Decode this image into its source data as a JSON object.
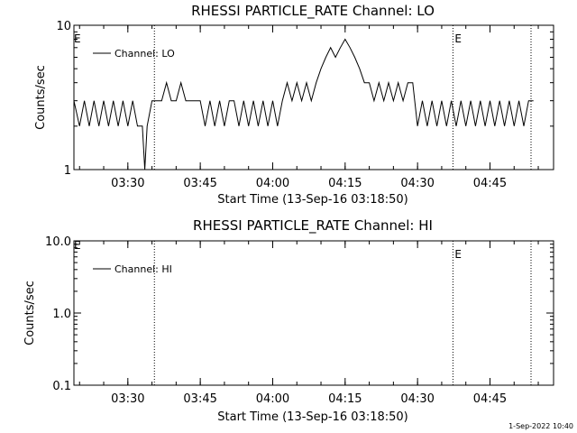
{
  "timestamp": "1-Sep-2022 10:40",
  "x_tick_labels": [
    "03:30",
    "03:45",
    "04:00",
    "04:15",
    "04:30",
    "04:45"
  ],
  "chart_data": [
    {
      "type": "line",
      "title": "RHESSI PARTICLE_RATE Channel: LO",
      "xlabel": "Start Time (13-Sep-16 03:18:50)",
      "ylabel": "Counts/sec",
      "log_y": true,
      "ylim": [
        1,
        10
      ],
      "xlim": [
        "03:18:50",
        "04:58:10"
      ],
      "y_tick_labels": [
        "1",
        "10"
      ],
      "markers": [
        {
          "time": "03:35:30",
          "label": ""
        },
        {
          "time": "04:37:20",
          "label": "E"
        },
        {
          "time": "04:53:30",
          "label": ""
        }
      ],
      "left_marker_label": "E",
      "legend_position": "top-left",
      "series": [
        {
          "name": "Channel: LO",
          "color": "#000000",
          "x": [
            "03:18:50",
            "03:20:00",
            "03:21:00",
            "03:22:00",
            "03:23:00",
            "03:24:00",
            "03:25:00",
            "03:26:00",
            "03:27:00",
            "03:28:00",
            "03:29:00",
            "03:30:00",
            "03:31:00",
            "03:32:00",
            "03:33:00",
            "03:33:30",
            "03:34:00",
            "03:35:00",
            "03:36:00",
            "03:37:00",
            "03:38:00",
            "03:39:00",
            "03:40:00",
            "03:41:00",
            "03:42:00",
            "03:43:00",
            "03:44:00",
            "03:45:00",
            "03:46:00",
            "03:47:00",
            "03:48:00",
            "03:49:00",
            "03:50:00",
            "03:51:00",
            "03:52:00",
            "03:53:00",
            "03:54:00",
            "03:55:00",
            "03:56:00",
            "03:57:00",
            "03:58:00",
            "03:59:00",
            "04:00:00",
            "04:01:00",
            "04:02:00",
            "04:03:00",
            "04:04:00",
            "04:05:00",
            "04:06:00",
            "04:07:00",
            "04:08:00",
            "04:09:00",
            "04:10:00",
            "04:11:00",
            "04:12:00",
            "04:13:00",
            "04:14:00",
            "04:15:00",
            "04:16:00",
            "04:17:00",
            "04:18:00",
            "04:19:00",
            "04:20:00",
            "04:21:00",
            "04:22:00",
            "04:23:00",
            "04:24:00",
            "04:25:00",
            "04:26:00",
            "04:27:00",
            "04:28:00",
            "04:29:00",
            "04:30:00",
            "04:31:00",
            "04:32:00",
            "04:33:00",
            "04:34:00",
            "04:35:00",
            "04:36:00",
            "04:37:00",
            "04:38:00",
            "04:39:00",
            "04:40:00",
            "04:41:00",
            "04:42:00",
            "04:43:00",
            "04:44:00",
            "04:45:00",
            "04:46:00",
            "04:47:00",
            "04:48:00",
            "04:49:00",
            "04:50:00",
            "04:51:00",
            "04:52:00",
            "04:53:00",
            "04:54:00"
          ],
          "y": [
            3,
            2,
            3,
            2,
            3,
            2,
            3,
            2,
            3,
            2,
            3,
            2,
            3,
            2,
            2,
            1,
            2,
            3,
            3,
            3,
            4,
            3,
            3,
            4,
            3,
            3,
            3,
            3,
            2,
            3,
            2,
            3,
            2,
            3,
            3,
            2,
            3,
            2,
            3,
            2,
            3,
            2,
            3,
            2,
            3,
            4,
            3,
            4,
            3,
            4,
            3,
            4,
            5,
            6,
            7,
            6,
            7,
            8,
            7,
            6,
            5,
            4,
            4,
            3,
            4,
            3,
            4,
            3,
            4,
            3,
            4,
            4,
            2,
            3,
            2,
            3,
            2,
            3,
            2,
            3,
            2,
            3,
            2,
            3,
            2,
            3,
            2,
            3,
            2,
            3,
            2,
            3,
            2,
            3,
            2,
            3,
            3
          ]
        }
      ]
    },
    {
      "type": "line",
      "title": "RHESSI PARTICLE_RATE Channel: HI",
      "xlabel": "Start Time (13-Sep-16 03:18:50)",
      "ylabel": "Counts/sec",
      "log_y": true,
      "ylim": [
        0.1,
        10
      ],
      "xlim": [
        "03:18:50",
        "04:58:10"
      ],
      "y_tick_labels": [
        "0.1",
        "1.0",
        "10.0"
      ],
      "markers": [
        {
          "time": "03:35:30",
          "label": ""
        },
        {
          "time": "04:37:20",
          "label": "E"
        },
        {
          "time": "04:53:30",
          "label": ""
        }
      ],
      "left_marker_label": "E",
      "legend_position": "top-left",
      "series": [
        {
          "name": "Channel: HI",
          "color": "#000000",
          "x": [],
          "y": []
        }
      ]
    }
  ]
}
